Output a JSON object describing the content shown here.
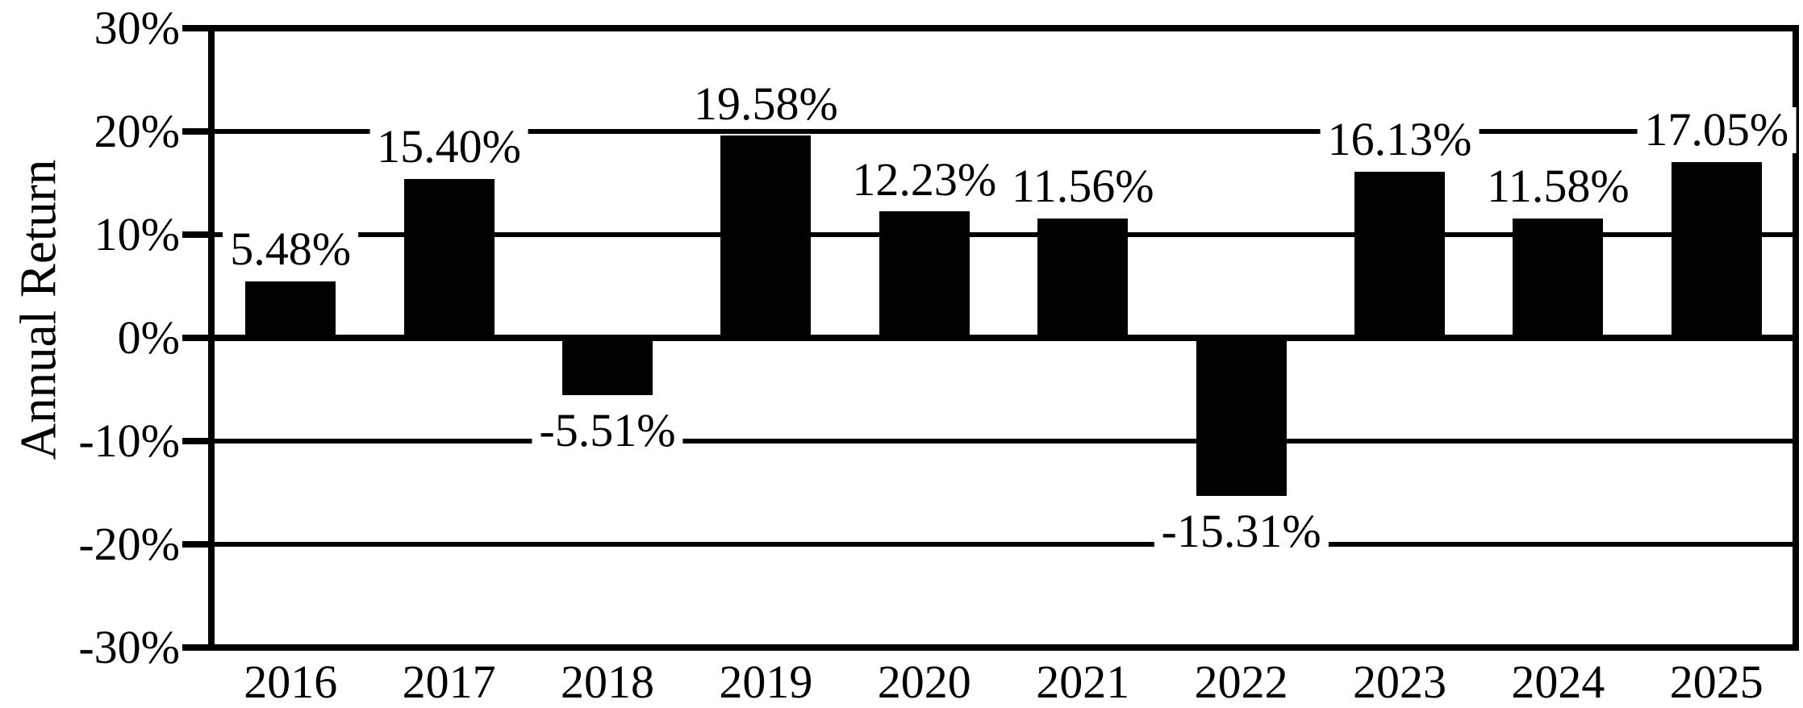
{
  "chart_data": {
    "type": "bar",
    "title": "",
    "xlabel": "",
    "ylabel": "Annual Return",
    "categories": [
      "2016",
      "2017",
      "2018",
      "2019",
      "2020",
      "2021",
      "2022",
      "2023",
      "2024",
      "2025"
    ],
    "values": [
      5.48,
      15.4,
      -5.51,
      19.58,
      12.23,
      11.56,
      -15.31,
      16.13,
      11.58,
      17.05
    ],
    "value_labels": [
      "5.48%",
      "15.40%",
      "-5.51%",
      "19.58%",
      "12.23%",
      "11.56%",
      "-15.31%",
      "16.13%",
      "11.58%",
      "17.05%"
    ],
    "y_ticks": [
      {
        "value": 30,
        "label": "30%"
      },
      {
        "value": 20,
        "label": "20%"
      },
      {
        "value": 10,
        "label": "10%"
      },
      {
        "value": 0,
        "label": "0%"
      },
      {
        "value": -10,
        "label": "-10%"
      },
      {
        "value": -20,
        "label": "-20%"
      },
      {
        "value": -30,
        "label": "-30%"
      }
    ],
    "ylim": [
      -30,
      30
    ],
    "grid": true,
    "zero_line": true,
    "legend": null,
    "bar_color": "#000000",
    "background_color": "#ffffff",
    "label_box_color": "#ffffff"
  }
}
